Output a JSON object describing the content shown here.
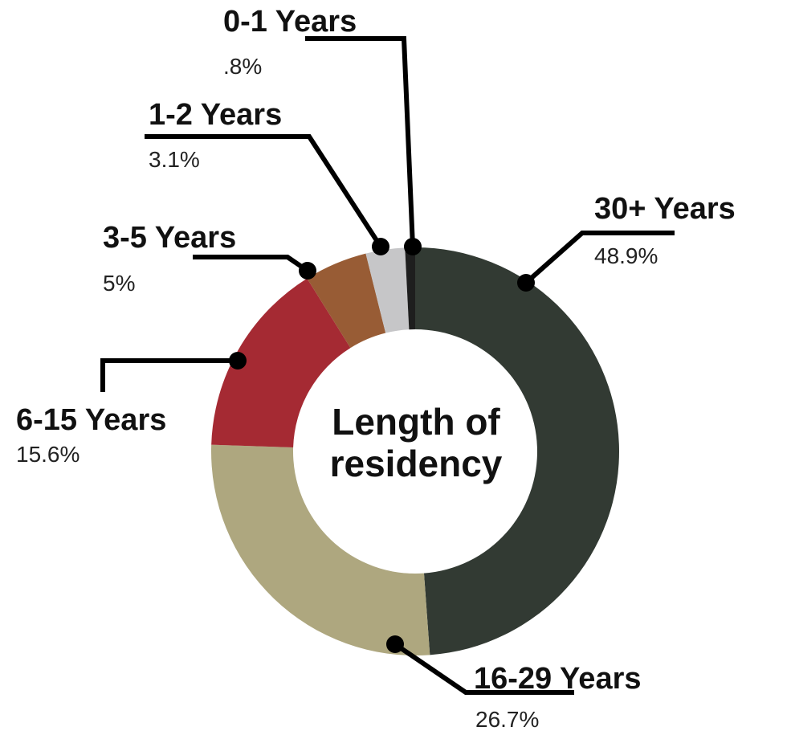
{
  "chart_data": {
    "type": "pie",
    "donut": true,
    "title": "Length of residency",
    "categories": [
      "30+ Years",
      "16-29 Years",
      "6-15 Years",
      "3-5 Years",
      "1-2 Years",
      "0-1 Years"
    ],
    "values": [
      48.9,
      26.7,
      15.6,
      5,
      3.1,
      0.8
    ],
    "value_labels": [
      "48.9%",
      "26.7%",
      "15.6%",
      "5%",
      "3.1%",
      ".8%"
    ],
    "colors": [
      "#323a33",
      "#aea77f",
      "#a52a33",
      "#985c35",
      "#c6c6c8",
      "#1e1e1e"
    ]
  }
}
